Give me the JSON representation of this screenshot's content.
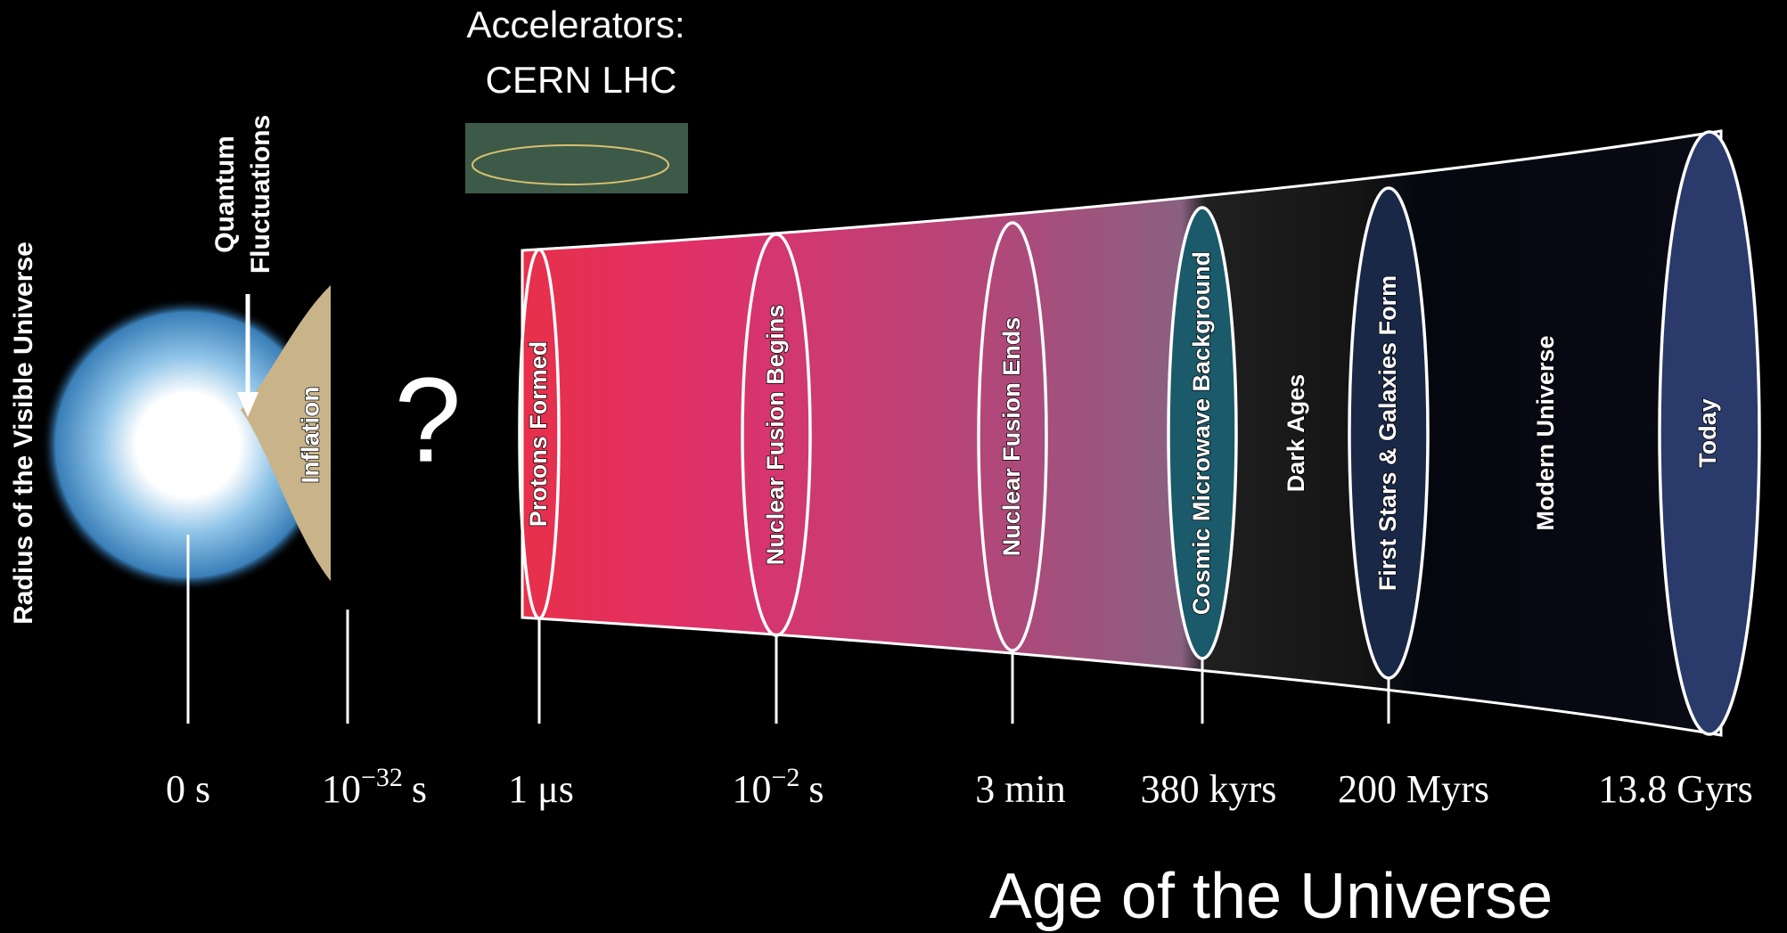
{
  "y_axis_label": "Radius of the Visible Universe",
  "quantum_fluctuations": [
    "Quantum",
    "Fluctuations"
  ],
  "inflation": "Inflation",
  "unknown": "?",
  "accelerators": [
    "Accelerators:",
    "CERN LHC"
  ],
  "epochs": [
    "Protons Formed",
    "Nuclear Fusion Begins",
    "Nuclear Fusion Ends",
    "Cosmic Microwave Background",
    "Dark Ages",
    "First Stars & Galaxies Form",
    "Modern Universe",
    "Today"
  ],
  "time_labels": [
    {
      "label": "0 s"
    },
    {
      "label": "10",
      "exponent": "−32",
      "unit": "s"
    },
    {
      "label": "1 μs"
    },
    {
      "label": "10",
      "exponent": "−2",
      "unit": "s"
    },
    {
      "label": "3 min"
    },
    {
      "label": "380 kyrs"
    },
    {
      "label": "200 Myrs"
    },
    {
      "label": "13.8 Gyrs"
    }
  ],
  "x_axis_label": "Age of the Universe"
}
